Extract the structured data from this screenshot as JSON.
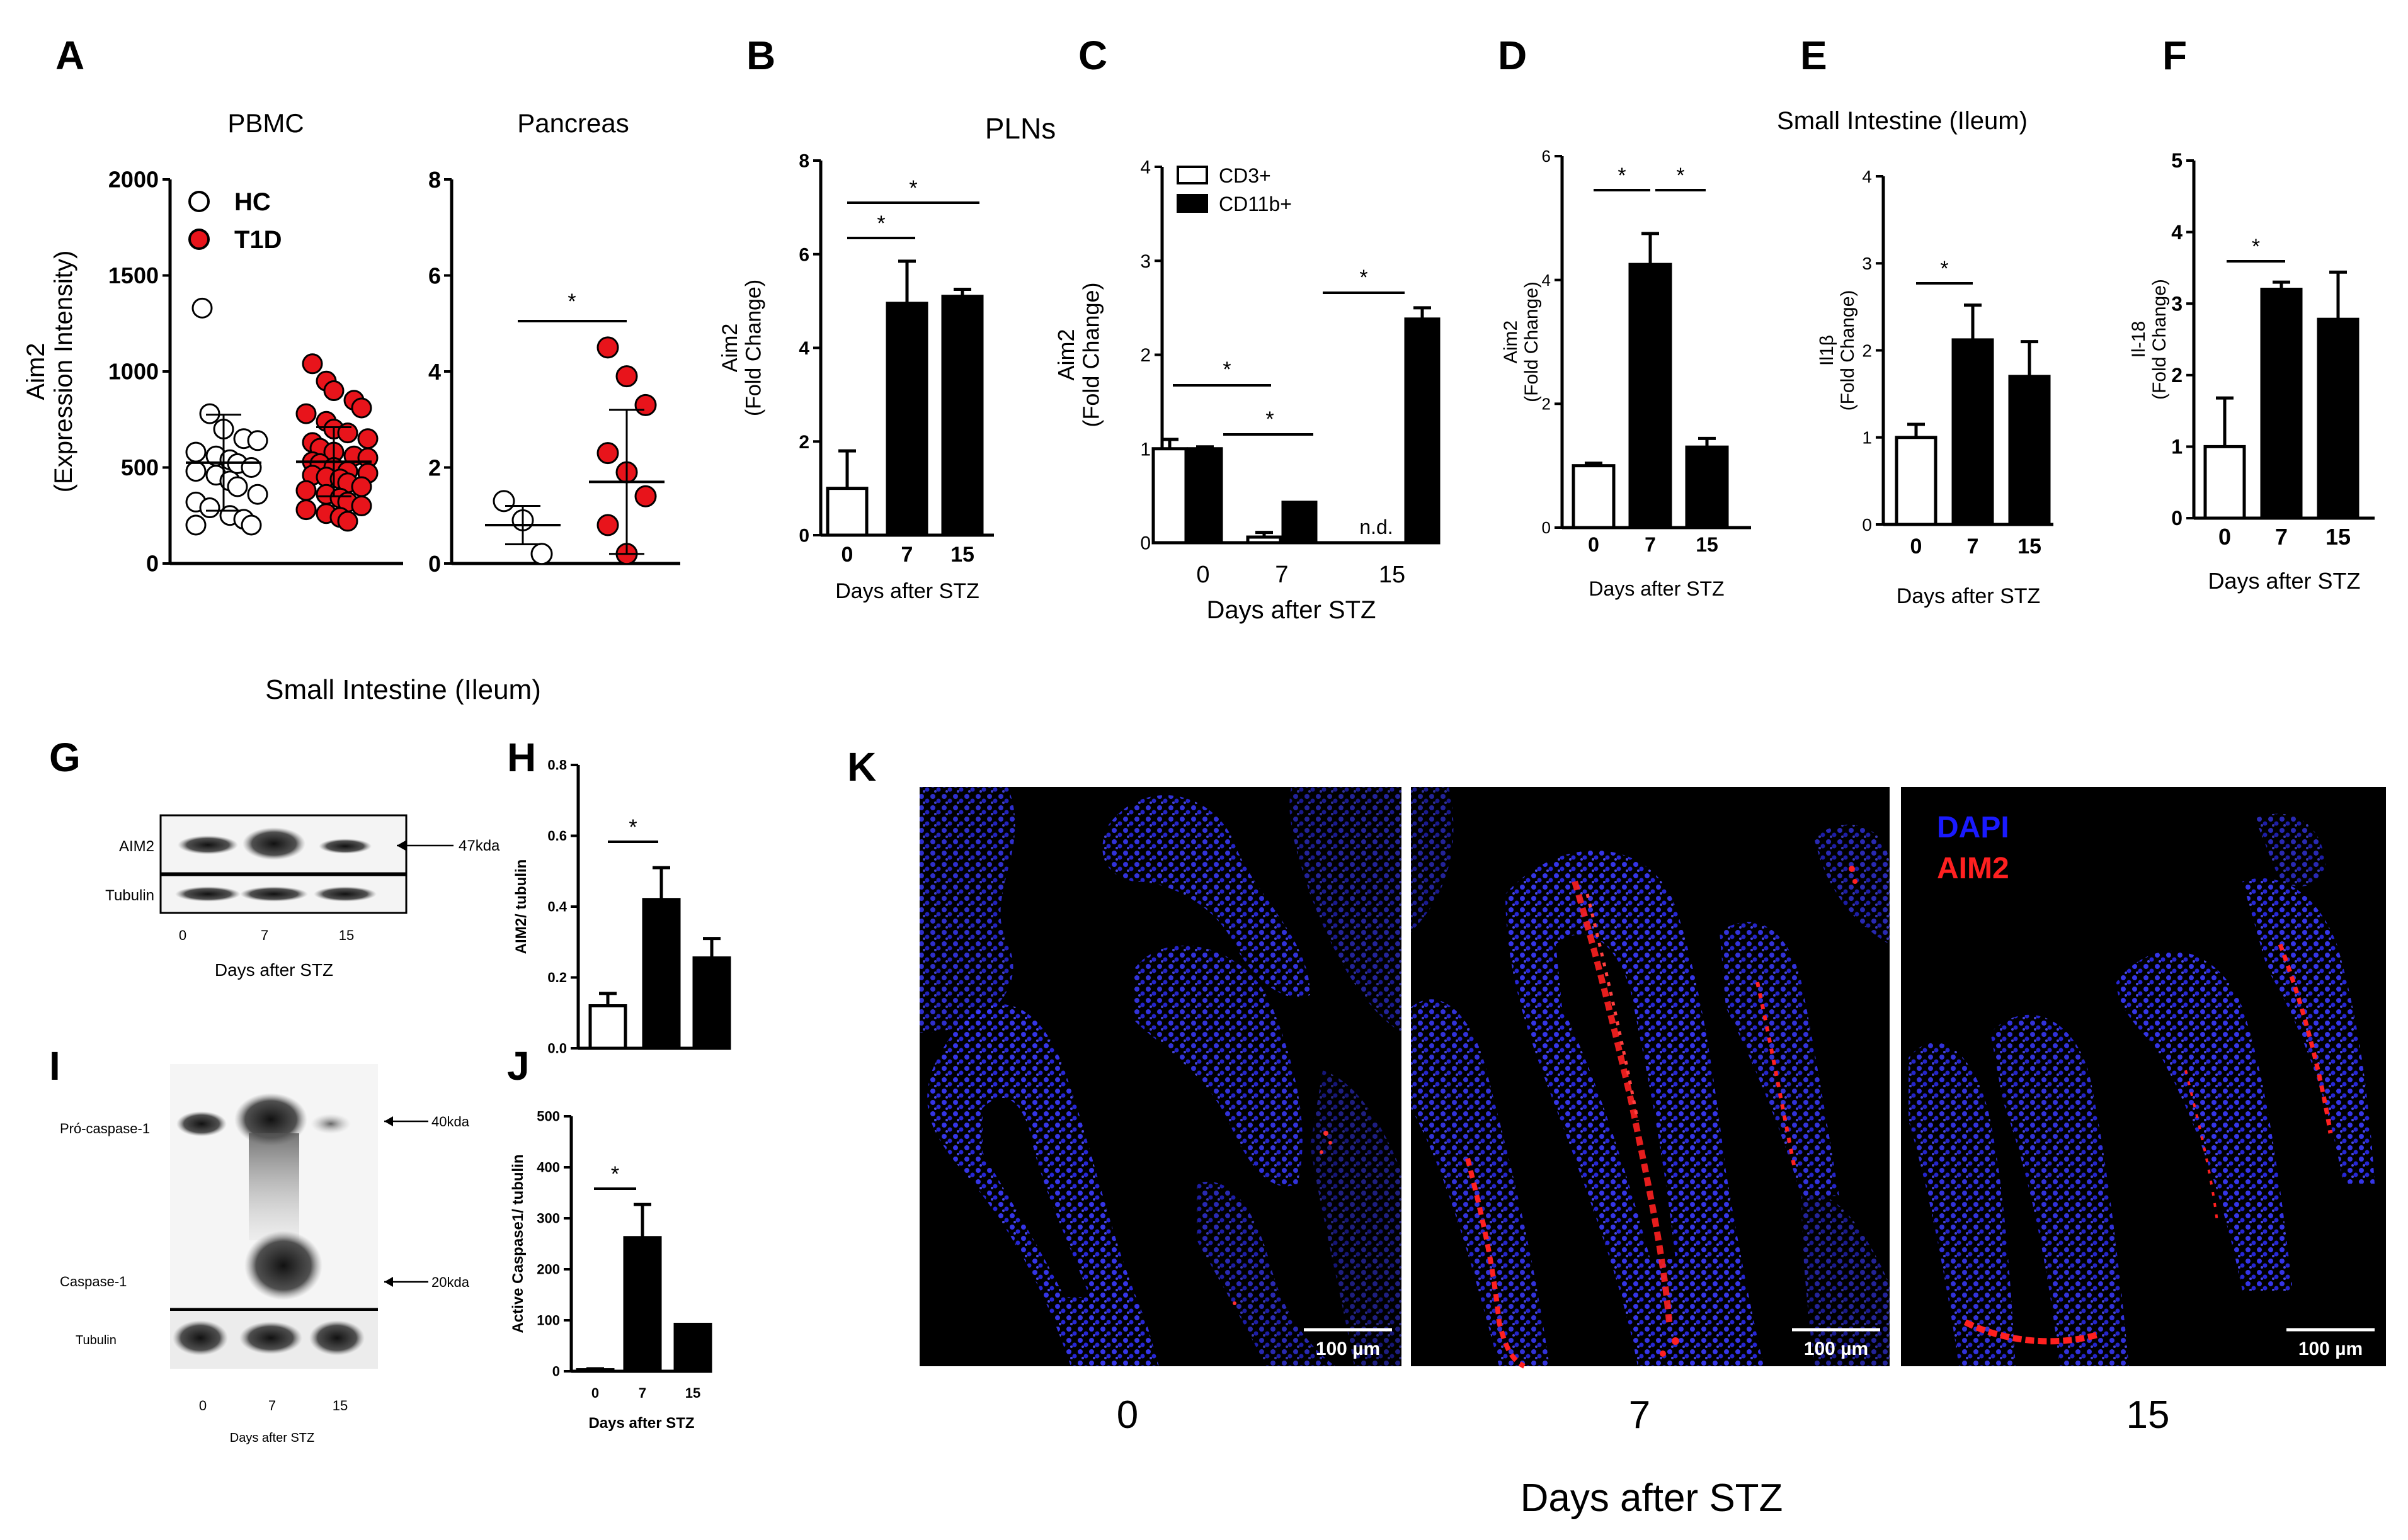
{
  "panel_letters": [
    "A",
    "B",
    "C",
    "D",
    "E",
    "F",
    "G",
    "H",
    "I",
    "J",
    "K"
  ],
  "headers": {
    "plns": "PLNs",
    "small_intestine_top": "Small Intestine (Ileum)",
    "small_intestine_blots": "Small Intestine (Ileum)"
  },
  "colors": {
    "hc_fill": "#ffffff",
    "t1d_fill": "#e8141b",
    "bar_open": "#ffffff",
    "bar_filled": "#000000",
    "axis": "#000000",
    "dapi": "#1a1aff",
    "aim2": "#ff2020"
  },
  "chart_data": [
    {
      "id": "A1",
      "type": "scatter",
      "title": "PBMC",
      "ylabel": "Aim2",
      "ylabel2": "(Expression Intensity)",
      "ylim": [
        0,
        2000
      ],
      "yticks": [
        0,
        500,
        1000,
        1500,
        2000
      ],
      "legend": [
        {
          "name": "HC"
        },
        {
          "name": "T1D"
        }
      ],
      "groups": [
        {
          "name": "HC",
          "points": [
            1330,
            780,
            700,
            650,
            640,
            580,
            560,
            540,
            520,
            500,
            480,
            460,
            430,
            400,
            360,
            320,
            290,
            250,
            230,
            200,
            200
          ],
          "mean": 525,
          "sd": 250
        },
        {
          "name": "T1D",
          "points": [
            1040,
            950,
            900,
            850,
            810,
            780,
            740,
            700,
            680,
            650,
            630,
            600,
            580,
            560,
            550,
            530,
            520,
            500,
            480,
            470,
            460,
            450,
            440,
            420,
            400,
            380,
            360,
            340,
            320,
            300,
            280,
            260,
            240,
            220
          ],
          "mean": 530,
          "sd": 180
        }
      ]
    },
    {
      "id": "A2",
      "type": "scatter",
      "title": "Pancreas",
      "ylim": [
        0,
        8
      ],
      "yticks": [
        0,
        2,
        4,
        6,
        8
      ],
      "groups": [
        {
          "name": "HC",
          "points": [
            1.3,
            0.9,
            0.2
          ],
          "mean": 0.8,
          "sd": 0.4
        },
        {
          "name": "T1D",
          "points": [
            4.5,
            3.9,
            3.3,
            2.3,
            1.9,
            1.4,
            0.8,
            0.2
          ],
          "mean": 1.7,
          "sd": 1.5
        }
      ],
      "significance": [
        {
          "label": "*",
          "from": 0,
          "to": 1
        }
      ]
    },
    {
      "id": "B",
      "type": "bar",
      "ylabel": "Aim2",
      "ylabel2": "(Fold Change)",
      "ylim": [
        0,
        8
      ],
      "yticks": [
        0,
        2,
        4,
        6,
        8
      ],
      "categories": [
        "0",
        "7",
        "15"
      ],
      "values": [
        1.0,
        4.95,
        5.1
      ],
      "errors": [
        0.8,
        0.9,
        0.15
      ],
      "xlabel": "Days after STZ",
      "significance": [
        {
          "label": "*",
          "from": 0,
          "to": 1
        },
        {
          "label": "*",
          "from": 0,
          "to": 2
        }
      ]
    },
    {
      "id": "C",
      "type": "bar",
      "ylabel": "Aim2",
      "ylabel2": "(Fold Change)",
      "ylim": [
        0,
        4
      ],
      "yticks": [
        0,
        1,
        2,
        3,
        4
      ],
      "categories": [
        "0",
        "7",
        "15"
      ],
      "series": [
        {
          "name": "CD3+",
          "values": [
            1.0,
            0.06,
            null
          ],
          "errors": [
            0.1,
            0.05,
            null
          ]
        },
        {
          "name": "CD11b+",
          "values": [
            1.0,
            0.43,
            2.38
          ],
          "errors": [
            0.02,
            0.0,
            0.12
          ]
        }
      ],
      "annotation": "n.d.",
      "xlabel": "Days after STZ",
      "significance": [
        {
          "label": "*"
        },
        {
          "label": "*"
        },
        {
          "label": "*"
        }
      ]
    },
    {
      "id": "D",
      "type": "bar",
      "ylabel": "Aim2",
      "ylabel2": "(Fold Change)",
      "ylim": [
        0,
        6
      ],
      "yticks": [
        0,
        2,
        4,
        6
      ],
      "categories": [
        "0",
        "7",
        "15"
      ],
      "values": [
        1.0,
        4.25,
        1.3
      ],
      "errors": [
        0.04,
        0.5,
        0.14
      ],
      "xlabel": "Days after STZ",
      "significance": [
        {
          "label": "*",
          "from": 0,
          "to": 1
        },
        {
          "label": "*",
          "from": 1,
          "to": 2
        }
      ]
    },
    {
      "id": "E",
      "type": "bar",
      "ylabel": "Il1β",
      "ylabel2": "(Fold Change)",
      "ylim": [
        0,
        4
      ],
      "yticks": [
        0,
        1,
        2,
        3,
        4
      ],
      "categories": [
        "0",
        "7",
        "15"
      ],
      "values": [
        1.0,
        2.12,
        1.7
      ],
      "errors": [
        0.15,
        0.4,
        0.4
      ],
      "xlabel": "Days after STZ",
      "significance": [
        {
          "label": "*",
          "from": 0,
          "to": 1
        }
      ]
    },
    {
      "id": "F",
      "type": "bar",
      "ylabel": "Il-18",
      "ylabel2": "(Fold Change)",
      "ylim": [
        0,
        5
      ],
      "yticks": [
        0,
        1,
        2,
        3,
        4,
        5
      ],
      "categories": [
        "0",
        "7",
        "15"
      ],
      "values": [
        1.0,
        3.2,
        2.78
      ],
      "errors": [
        0.68,
        0.1,
        0.66
      ],
      "xlabel": "Days after STZ",
      "significance": [
        {
          "label": "*",
          "from": 0,
          "to": 1
        }
      ]
    },
    {
      "id": "H",
      "type": "bar",
      "ylabel": "AIM2/ tubulin",
      "ylim": [
        0,
        0.8
      ],
      "yticks": [
        "0.0",
        "0.2",
        "0.4",
        "0.6",
        "0.8"
      ],
      "categories": [
        "0",
        "7",
        "15"
      ],
      "values": [
        0.12,
        0.42,
        0.255
      ],
      "errors": [
        0.035,
        0.09,
        0.055
      ],
      "significance": [
        {
          "label": "*",
          "from": 0,
          "to": 1
        }
      ]
    },
    {
      "id": "J",
      "type": "bar",
      "ylabel": "Active Caspase1/ tubulin",
      "ylim": [
        0,
        500
      ],
      "yticks": [
        0,
        100,
        200,
        300,
        400,
        500
      ],
      "categories": [
        "0",
        "7",
        "15"
      ],
      "values": [
        3,
        262,
        92
      ],
      "errors": [
        2,
        65,
        0
      ],
      "xlabel": "Days after STZ",
      "significance": [
        {
          "label": "*",
          "from": 0,
          "to": 1
        }
      ]
    }
  ],
  "blots": {
    "G": {
      "rows": [
        "AIM2",
        "Tubulin"
      ],
      "markers": [
        "47kda"
      ],
      "lanes": [
        "0",
        "7",
        "15"
      ],
      "xlabel": "Days after STZ"
    },
    "I": {
      "rows": [
        "Pró-caspase-1",
        "Caspase-1",
        "Tubulin"
      ],
      "markers": [
        "40kda",
        "20kda"
      ],
      "lanes": [
        "0",
        "7",
        "15"
      ],
      "xlabel": "Days after STZ"
    }
  },
  "micrographs": {
    "legend": [
      "DAPI",
      "AIM2"
    ],
    "scale_bar": "100 µm",
    "timepoints": [
      "0",
      "7",
      "15"
    ],
    "xlabel": "Days after STZ"
  }
}
